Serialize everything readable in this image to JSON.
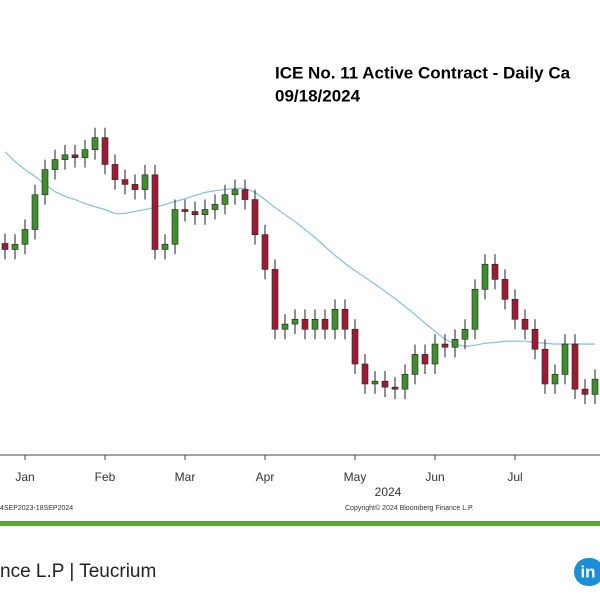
{
  "chart_data": {
    "type": "candlestick",
    "title": "ICE No. 11 Active Contract - Daily Ca",
    "subtitle": "09/18/2024",
    "x_label": "2024",
    "categories": [
      null,
      null,
      "Jan",
      null,
      null,
      null,
      null,
      null,
      null,
      null,
      "Feb",
      null,
      null,
      null,
      null,
      null,
      null,
      null,
      "Mar",
      null,
      null,
      null,
      null,
      null,
      null,
      null,
      "Apr",
      null,
      null,
      null,
      null,
      null,
      null,
      null,
      null,
      "May",
      null,
      null,
      null,
      null,
      null,
      null,
      null,
      "Jun",
      null,
      null,
      null,
      null,
      null,
      null,
      null,
      "Jul",
      null,
      null,
      null,
      null,
      null,
      null,
      null,
      null
    ],
    "open": [
      21.9,
      21.75,
      21.88,
      22.25,
      23.12,
      23.75,
      24.0,
      24.12,
      24.05,
      24.25,
      24.55,
      23.88,
      23.5,
      23.38,
      23.25,
      23.62,
      21.75,
      21.88,
      22.75,
      22.7,
      22.62,
      22.75,
      22.88,
      23.12,
      23.25,
      23.0,
      22.12,
      21.25,
      19.75,
      19.88,
      20.0,
      19.75,
      20.0,
      19.75,
      20.25,
      19.75,
      18.88,
      18.38,
      18.45,
      18.3,
      18.25,
      18.62,
      19.12,
      18.88,
      19.38,
      19.3,
      19.5,
      19.75,
      20.75,
      21.38,
      21.0,
      20.5,
      20.0,
      19.75,
      19.25,
      18.38,
      18.62,
      19.38,
      18.25,
      18.12
    ],
    "high": [
      22.15,
      22.13,
      22.5,
      23.37,
      24.0,
      24.25,
      24.37,
      24.37,
      24.5,
      24.8,
      24.8,
      24.13,
      23.75,
      23.63,
      23.87,
      23.87,
      22.13,
      23.0,
      23.0,
      22.95,
      23.0,
      23.13,
      23.37,
      23.5,
      23.5,
      23.25,
      22.37,
      21.5,
      20.13,
      20.25,
      20.25,
      20.25,
      20.25,
      20.5,
      20.5,
      20.0,
      19.13,
      18.7,
      18.7,
      18.55,
      18.87,
      19.37,
      19.37,
      19.63,
      19.63,
      19.75,
      20.0,
      21.0,
      21.63,
      21.63,
      21.25,
      20.75,
      20.25,
      20.0,
      19.5,
      18.87,
      19.63,
      19.63,
      18.5,
      18.75
    ],
    "low": [
      21.5,
      21.5,
      21.63,
      22.0,
      22.87,
      23.5,
      23.75,
      23.8,
      23.8,
      24.0,
      23.63,
      23.25,
      23.13,
      23.0,
      23.0,
      21.5,
      21.5,
      21.63,
      22.45,
      22.37,
      22.37,
      22.5,
      22.63,
      22.87,
      22.75,
      21.87,
      21.0,
      19.5,
      19.5,
      19.63,
      19.5,
      19.5,
      19.5,
      19.5,
      19.5,
      18.63,
      18.13,
      18.13,
      18.05,
      18.0,
      18.0,
      18.37,
      18.63,
      18.63,
      19.05,
      19.05,
      19.25,
      19.5,
      20.5,
      20.75,
      20.25,
      19.75,
      19.5,
      19.0,
      18.13,
      18.13,
      18.37,
      18.0,
      17.87,
      17.87
    ],
    "close": [
      21.75,
      21.88,
      22.25,
      23.12,
      23.75,
      24.0,
      24.12,
      24.05,
      24.25,
      24.55,
      23.88,
      23.5,
      23.38,
      23.25,
      23.62,
      21.75,
      21.88,
      22.75,
      22.7,
      22.62,
      22.75,
      22.88,
      23.12,
      23.25,
      23.0,
      22.12,
      21.25,
      19.75,
      19.88,
      20.0,
      19.75,
      20.0,
      19.75,
      20.25,
      19.75,
      18.88,
      18.38,
      18.45,
      18.3,
      18.25,
      18.62,
      19.12,
      18.88,
      19.38,
      19.3,
      19.5,
      19.75,
      20.75,
      21.38,
      21.0,
      20.5,
      20.0,
      19.75,
      19.25,
      18.38,
      18.62,
      19.38,
      18.25,
      18.12,
      18.5
    ],
    "up_color": "#3f8f2f",
    "down_color": "#9e1c33",
    "series": [
      {
        "color": "#8fc3e0",
        "values": [
          24.2,
          23.95,
          23.75,
          23.58,
          23.38,
          23.2,
          23.08,
          23.0,
          22.9,
          22.82,
          22.75,
          22.65,
          22.65,
          22.7,
          22.75,
          22.8,
          22.88,
          22.95,
          23.02,
          23.1,
          23.18,
          23.22,
          23.25,
          23.28,
          23.28,
          23.18,
          23.0,
          22.8,
          22.62,
          22.45,
          22.25,
          22.05,
          21.82,
          21.6,
          21.4,
          21.22,
          21.05,
          20.88,
          20.7,
          20.52,
          20.32,
          20.12,
          19.9,
          19.7,
          19.5,
          19.38,
          19.32,
          19.35,
          19.4,
          19.42,
          19.45,
          19.45,
          19.45,
          19.42,
          19.4,
          19.38,
          19.38,
          19.38,
          19.38,
          19.38
        ]
      }
    ],
    "ylim": [
      16.6,
      28
    ]
  },
  "footer": {
    "range": "4SEP2023-18SEP2024",
    "copyright": "Copyright© 2024 Bloomberg Finance L.P.",
    "credit": "nce L.P | Teucrium",
    "logo": "in"
  }
}
